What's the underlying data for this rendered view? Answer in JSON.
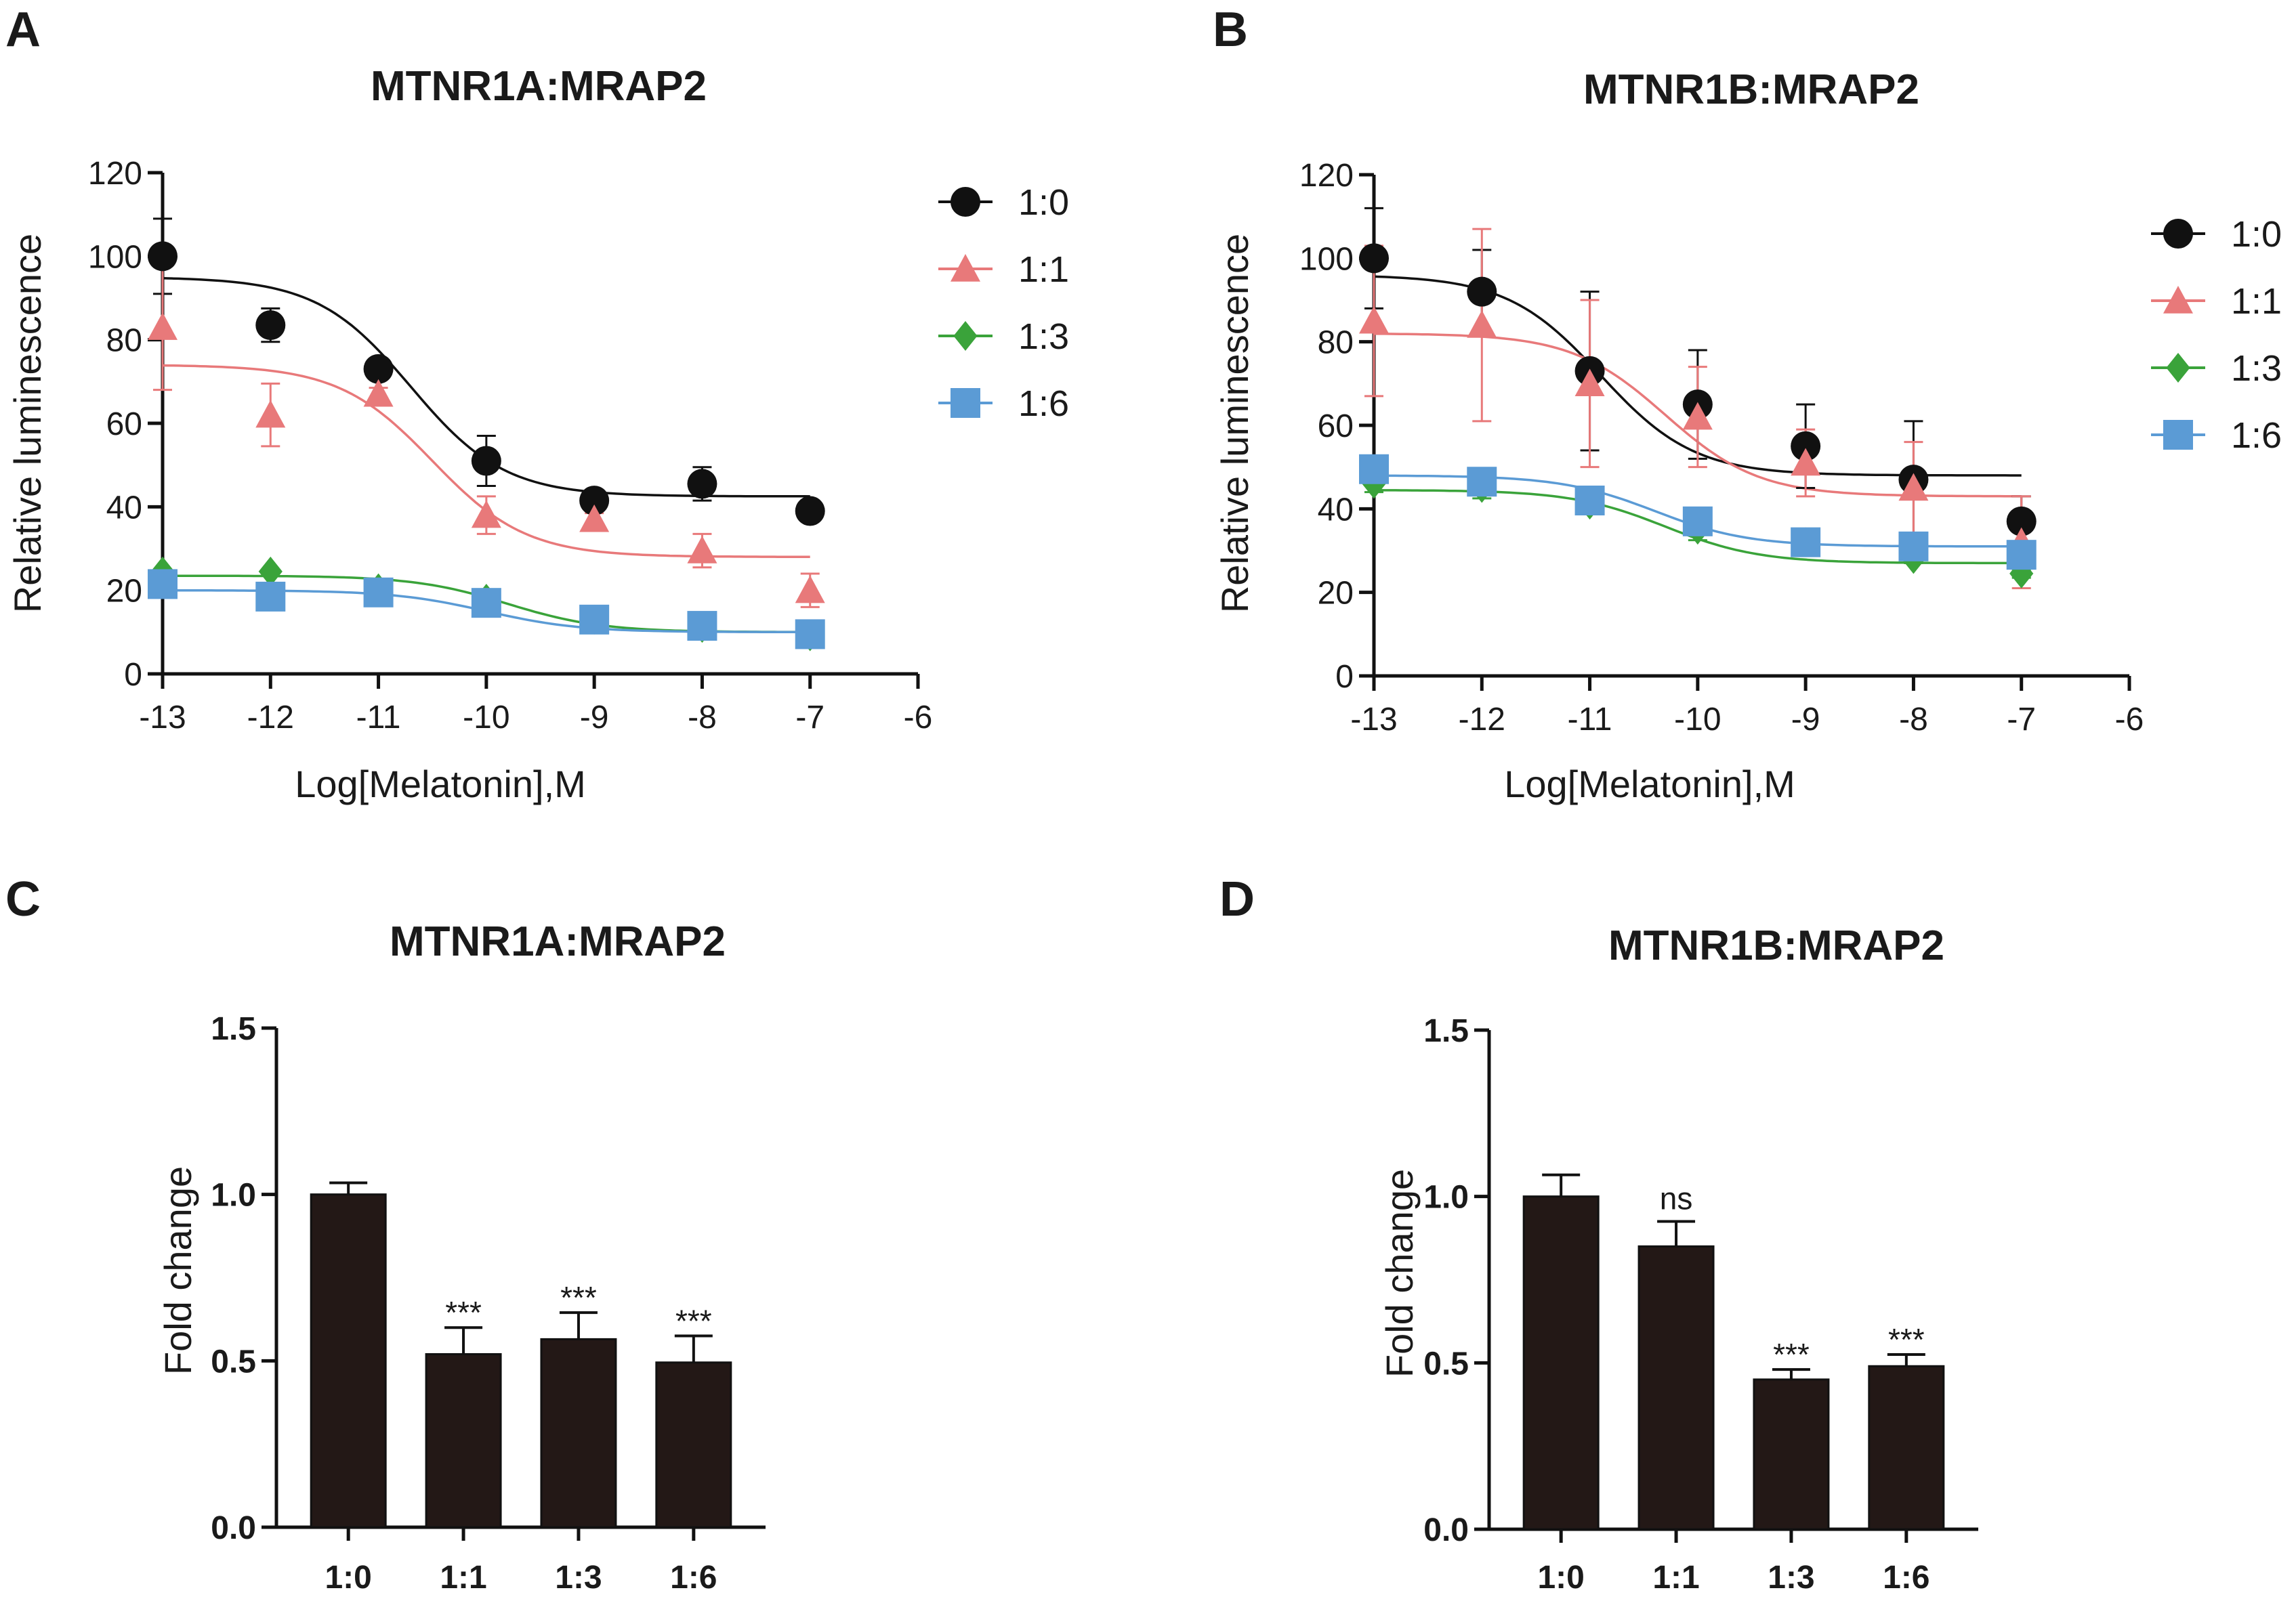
{
  "panels": [
    {
      "letter": "A",
      "chart_data": {
        "type": "line",
        "title": "MTNR1A:MRAP2",
        "xlabel": "Log[Melatonin],M",
        "ylabel": "Relative luminescence",
        "xlim": [
          -13,
          -6
        ],
        "ylim": [
          0,
          120
        ],
        "xticks": [
          "-13",
          "-12",
          "-11",
          "-10",
          "-9",
          "-8",
          "-7",
          "-6"
        ],
        "yticks": [
          "0",
          "20",
          "40",
          "60",
          "80",
          "100",
          "120"
        ],
        "legend_position": "top-right",
        "x": [
          -13,
          -12,
          -11,
          -10,
          -9,
          -8,
          -7
        ],
        "series": [
          {
            "name": "1:0",
            "color": "#111111",
            "marker": "circle",
            "values": [
              100,
              83.5,
              73,
              51,
              41.5,
              45.5,
              39
            ],
            "errors": [
              9,
              4,
              2.5,
              6,
              1.5,
              4,
              1
            ],
            "fit": {
              "top": 95,
              "bottom": 42.5,
              "logec50": -10.7,
              "hill": 1
            }
          },
          {
            "name": "1:1",
            "color": "#e8797a",
            "marker": "triangle",
            "values": [
              83,
              62,
              67,
              38,
              37,
              29.5,
              20
            ],
            "errors": [
              15,
              7.5,
              1.5,
              4.5,
              1.5,
              4,
              4
            ],
            "fit": {
              "top": 74,
              "bottom": 28,
              "logec50": -10.5,
              "hill": 1
            }
          },
          {
            "name": "1:3",
            "color": "#3aa33a",
            "marker": "diamond",
            "values": [
              24.5,
              24.5,
              20.5,
              18,
              13,
              11,
              9
            ],
            "errors": [
              0.5,
              0.5,
              0.5,
              0.5,
              0.5,
              0.5,
              0.5
            ],
            "fit": {
              "top": 23.5,
              "bottom": 10,
              "logec50": -9.8,
              "hill": 1
            }
          },
          {
            "name": "1:6",
            "color": "#5b9bd5",
            "marker": "square",
            "values": [
              21.5,
              18.5,
              19.5,
              17,
              13,
              11.5,
              9.5
            ],
            "errors": [
              0.5,
              0.5,
              0.5,
              0.5,
              0.5,
              0.5,
              0.5
            ],
            "fit": {
              "top": 20,
              "bottom": 10,
              "logec50": -10,
              "hill": 1
            }
          }
        ]
      }
    },
    {
      "letter": "B",
      "chart_data": {
        "type": "line",
        "title": "MTNR1B:MRAP2",
        "xlabel": "Log[Melatonin],M",
        "ylabel": "Relative luminescence",
        "xlim": [
          -13,
          -6
        ],
        "ylim": [
          0,
          120
        ],
        "xticks": [
          "-13",
          "-12",
          "-11",
          "-10",
          "-9",
          "-8",
          "-7",
          "-6"
        ],
        "yticks": [
          "0",
          "20",
          "40",
          "60",
          "80",
          "100",
          "120"
        ],
        "legend_position": "top-right",
        "x": [
          -13,
          -12,
          -11,
          -10,
          -9,
          -8,
          -7
        ],
        "series": [
          {
            "name": "1:0",
            "color": "#111111",
            "marker": "circle",
            "values": [
              100,
              92,
              73,
              65,
              55,
              47,
              37
            ],
            "errors": [
              12,
              10,
              19,
              13,
              10,
              14,
              6
            ],
            "fit": {
              "top": 96,
              "bottom": 48,
              "logec50": -10.9,
              "hill": 1
            }
          },
          {
            "name": "1:1",
            "color": "#e8797a",
            "marker": "triangle",
            "values": [
              85,
              84,
              70,
              62,
              51,
              45,
              32
            ],
            "errors": [
              18,
              23,
              20,
              12,
              8,
              11,
              11
            ],
            "fit": {
              "top": 82,
              "bottom": 43,
              "logec50": -10.3,
              "hill": 1
            }
          },
          {
            "name": "1:3",
            "color": "#3aa33a",
            "marker": "diamond",
            "values": [
              46,
              45,
              41,
              35,
              32,
              28,
              24.5
            ],
            "errors": [
              2,
              2.5,
              1.5,
              2.5,
              1.5,
              1,
              1
            ],
            "fit": {
              "top": 44.5,
              "bottom": 27,
              "logec50": -10.3,
              "hill": 1
            }
          },
          {
            "name": "1:6",
            "color": "#5b9bd5",
            "marker": "square",
            "values": [
              49.5,
              46.5,
              42,
              37,
              32,
              31,
              29
            ],
            "errors": [
              2,
              2,
              1.5,
              2,
              1.5,
              1.5,
              1.5
            ],
            "fit": {
              "top": 48,
              "bottom": 31,
              "logec50": -10.4,
              "hill": 1
            }
          }
        ]
      }
    },
    {
      "letter": "C",
      "chart_data": {
        "type": "bar",
        "title": "MTNR1A:MRAP2",
        "xlabel": "",
        "ylabel": "Fold change",
        "categories": [
          "1:0",
          "1:1",
          "1:3",
          "1:6"
        ],
        "values": [
          1.0,
          0.52,
          0.565,
          0.495
        ],
        "errors": [
          0.035,
          0.08,
          0.08,
          0.08
        ],
        "annotations": [
          "",
          "***",
          "***",
          "***"
        ],
        "ylim": [
          0,
          1.5
        ],
        "yticks": [
          "0.0",
          "0.5",
          "1.0",
          "1.5"
        ],
        "bar_color": "#231816"
      }
    },
    {
      "letter": "D",
      "chart_data": {
        "type": "bar",
        "title": "MTNR1B:MRAP2",
        "xlabel": "",
        "ylabel": "Fold change",
        "categories": [
          "1:0",
          "1:1",
          "1:3",
          "1:6"
        ],
        "values": [
          1.0,
          0.85,
          0.45,
          0.49
        ],
        "errors": [
          0.065,
          0.075,
          0.03,
          0.035
        ],
        "annotations": [
          "",
          "ns",
          "***",
          "***"
        ],
        "ylim": [
          0,
          1.5
        ],
        "yticks": [
          "0.0",
          "0.5",
          "1.0",
          "1.5"
        ],
        "bar_color": "#231816"
      }
    }
  ]
}
